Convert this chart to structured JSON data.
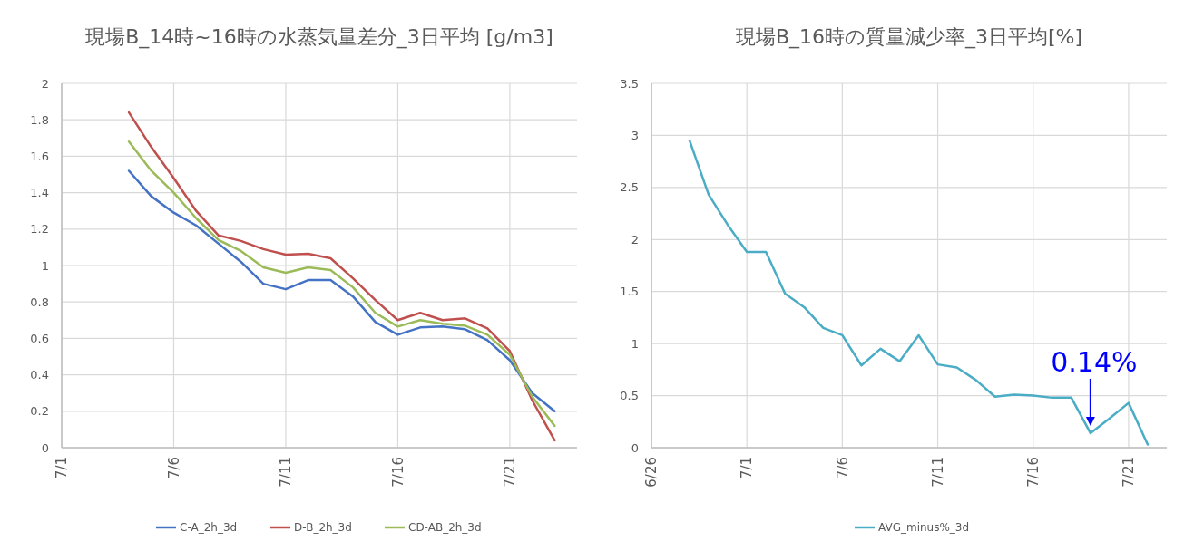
{
  "chart_data": [
    {
      "type": "line",
      "title": "現場B_14時~16時の水蒸気量差分_3日平均 [g/m3]",
      "x": [
        "--07-04",
        "--07-05",
        "--07-06",
        "--07-07",
        "--07-08",
        "--07-09",
        "--07-10",
        "--07-11",
        "--07-12",
        "--07-13",
        "--07-14",
        "--07-15",
        "--07-16",
        "--07-17",
        "--07-18",
        "--07-19",
        "--07-20",
        "--07-21",
        "--07-22",
        "--07-23"
      ],
      "series": [
        {
          "name": "C-A_2h_3d",
          "color": "#4472c4",
          "values": [
            1.52,
            1.38,
            1.29,
            1.22,
            1.12,
            1.02,
            0.9,
            0.87,
            0.92,
            0.92,
            0.83,
            0.69,
            0.62,
            0.66,
            0.665,
            0.65,
            0.59,
            0.48,
            0.3,
            0.2
          ]
        },
        {
          "name": "D-B_2h_3d",
          "color": "#c0504d",
          "values": [
            1.84,
            1.65,
            1.48,
            1.3,
            1.165,
            1.135,
            1.09,
            1.06,
            1.065,
            1.04,
            0.93,
            0.81,
            0.7,
            0.74,
            0.7,
            0.71,
            0.655,
            0.53,
            0.26,
            0.04
          ]
        },
        {
          "name": "CD-AB_2h_3d",
          "color": "#9bbb59",
          "values": [
            1.68,
            1.52,
            1.4,
            1.26,
            1.14,
            1.08,
            0.99,
            0.96,
            0.99,
            0.975,
            0.88,
            0.74,
            0.665,
            0.7,
            0.68,
            0.67,
            0.62,
            0.51,
            0.28,
            0.12
          ]
        }
      ],
      "xlim": [
        "--07-01",
        "--07-24"
      ],
      "xticks": [
        {
          "value": "--07-01",
          "label": "7/1"
        },
        {
          "value": "--07-06",
          "label": "7/6"
        },
        {
          "value": "--07-11",
          "label": "7/11"
        },
        {
          "value": "--07-16",
          "label": "7/16"
        },
        {
          "value": "--07-21",
          "label": "7/21"
        }
      ],
      "ylim": [
        0,
        2
      ],
      "yticks": [
        0,
        0.2,
        0.4,
        0.6,
        0.8,
        1,
        1.2,
        1.4,
        1.6,
        1.8,
        2
      ],
      "grid": true,
      "legend": "bottom"
    },
    {
      "type": "line",
      "title": "現場B_16時の質量減少率_3日平均[%]",
      "x": [
        "--06-28",
        "--06-29",
        "--06-30",
        "--07-01",
        "--07-02",
        "--07-03",
        "--07-04",
        "--07-05",
        "--07-06",
        "--07-07",
        "--07-08",
        "--07-09",
        "--07-10",
        "--07-11",
        "--07-12",
        "--07-13",
        "--07-14",
        "--07-15",
        "--07-16",
        "--07-17",
        "--07-18",
        "--07-19",
        "--07-20",
        "--07-21",
        "--07-22"
      ],
      "series": [
        {
          "name": "AVG_minus%_3d",
          "color": "#4bacc6",
          "values": [
            2.95,
            2.43,
            2.14,
            1.88,
            1.88,
            1.48,
            1.35,
            1.15,
            1.08,
            0.79,
            0.95,
            0.83,
            1.08,
            0.8,
            0.77,
            0.65,
            0.49,
            0.51,
            0.5,
            0.48,
            0.48,
            0.14,
            0.28,
            0.43,
            0.03
          ]
        }
      ],
      "xlim": [
        "--06-26",
        "--07-23"
      ],
      "xticks": [
        {
          "value": "--06-26",
          "label": "6/26"
        },
        {
          "value": "--07-01",
          "label": "7/1"
        },
        {
          "value": "--07-06",
          "label": "7/6"
        },
        {
          "value": "--07-11",
          "label": "7/11"
        },
        {
          "value": "--07-16",
          "label": "7/16"
        },
        {
          "value": "--07-21",
          "label": "7/21"
        }
      ],
      "ylim": [
        0,
        3.5
      ],
      "yticks": [
        0,
        0.5,
        1,
        1.5,
        2,
        2.5,
        3,
        3.5
      ],
      "grid": true,
      "legend": "bottom",
      "annotations": [
        {
          "text": "0.14%",
          "x": "--07-19",
          "y": 0.14
        }
      ]
    }
  ]
}
